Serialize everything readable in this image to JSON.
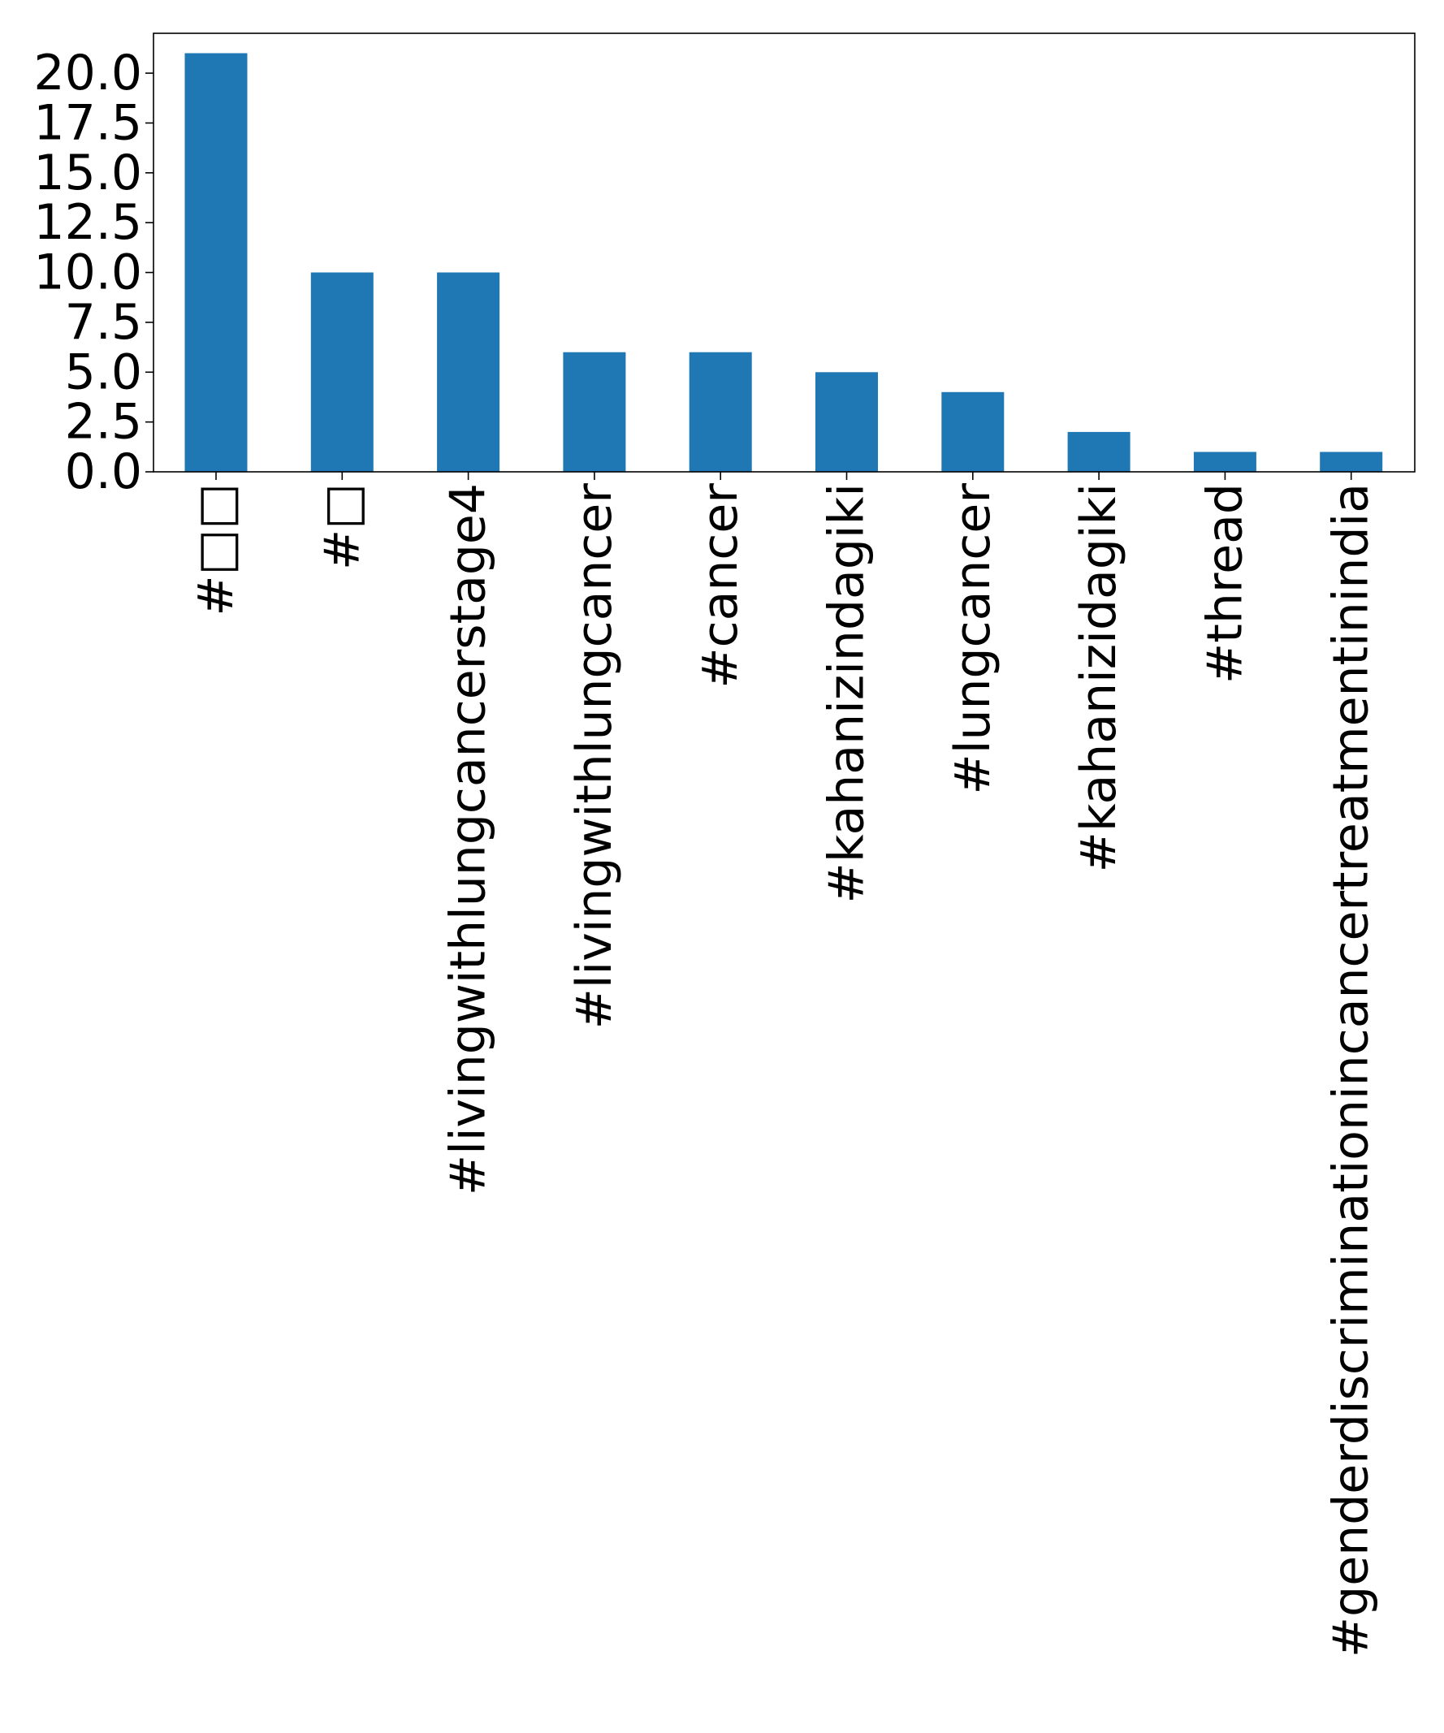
{
  "chart_data": {
    "type": "bar",
    "categories": [
      "#□□",
      "#□",
      "#livingwithlungcancerstage4",
      "#livingwithlungcancer",
      "#cancer",
      "#kahanizindagiki",
      "#lungcancer",
      "#kahanizidagiki",
      "#thread",
      "#genderdiscriminationincancertreatmentinindia"
    ],
    "values": [
      21,
      10,
      10,
      6,
      6,
      5,
      4,
      2,
      1,
      1
    ],
    "ylim": [
      0,
      22
    ],
    "yticks": [
      0.0,
      2.5,
      5.0,
      7.5,
      10.0,
      12.5,
      15.0,
      17.5,
      20.0
    ],
    "ytick_labels": [
      "0.0",
      "2.5",
      "5.0",
      "7.5",
      "10.0",
      "12.5",
      "15.0",
      "17.5",
      "20.0"
    ],
    "bar_color": "#1f77b4",
    "grid": false,
    "title": "",
    "xlabel": "",
    "ylabel": ""
  }
}
